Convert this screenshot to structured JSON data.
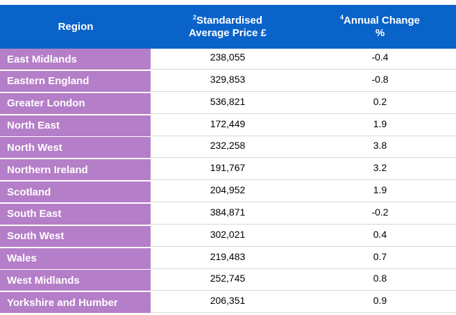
{
  "table": {
    "headers": {
      "region": "Region",
      "price_sup": "2",
      "price_line1": "Standardised",
      "price_line2": "Average Price £",
      "change_sup": "4",
      "change_line1": "Annual Change",
      "change_line2": "%"
    },
    "rows": [
      {
        "region": "East Midlands",
        "price": "238,055",
        "change": "-0.4"
      },
      {
        "region": "Eastern England",
        "price": "329,853",
        "change": "-0.8"
      },
      {
        "region": "Greater London",
        "price": "536,821",
        "change": "0.2"
      },
      {
        "region": "North East",
        "price": "172,449",
        "change": "1.9"
      },
      {
        "region": "North West",
        "price": "232,258",
        "change": "3.8"
      },
      {
        "region": "Northern Ireland",
        "price": "191,767",
        "change": "3.2"
      },
      {
        "region": "Scotland",
        "price": "204,952",
        "change": "1.9"
      },
      {
        "region": "South East",
        "price": "384,871",
        "change": "-0.2"
      },
      {
        "region": "South West",
        "price": "302,021",
        "change": "0.4"
      },
      {
        "region": "Wales",
        "price": "219,483",
        "change": "0.7"
      },
      {
        "region": "West Midlands",
        "price": "252,745",
        "change": "0.8"
      },
      {
        "region": "Yorkshire and Humber",
        "price": "206,351",
        "change": "0.9"
      }
    ]
  },
  "colors": {
    "header_bg": "#0a63c9",
    "region_bg": "#b57ec8"
  }
}
